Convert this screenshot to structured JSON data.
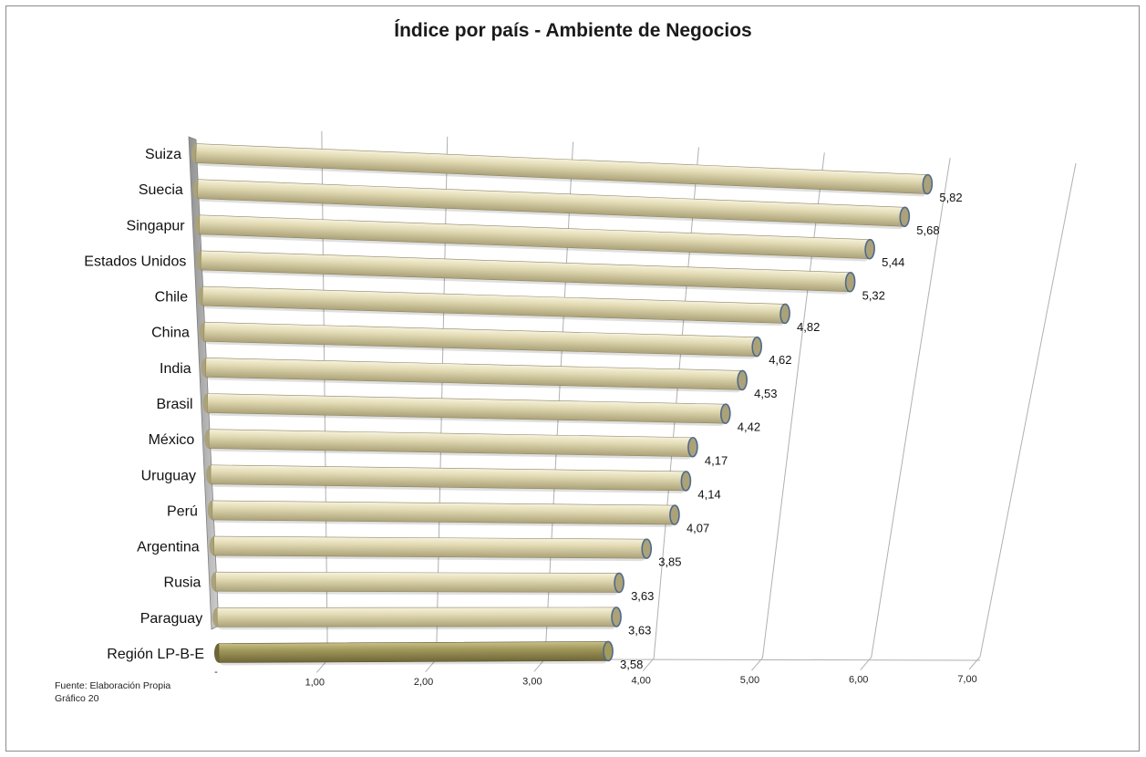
{
  "notes": {
    "source": "Fuente: Elaboración Propia",
    "figure": "Gráfico  20"
  },
  "chart_data": {
    "type": "bar",
    "orientation": "horizontal",
    "style": "3d-cylinder",
    "title": "Índice por país - Ambiente de Negocios",
    "xlabel": "",
    "ylabel": "",
    "xlim": [
      0,
      7
    ],
    "x_tick_labels": [
      "-",
      "1,00",
      "2,00",
      "3,00",
      "4,00",
      "5,00",
      "6,00",
      "7,00"
    ],
    "categories": [
      "Suiza",
      "Suecia",
      "Singapur",
      "Estados Unidos",
      "Chile",
      "China",
      "India",
      "Brasil",
      "México",
      "Uruguay",
      "Perú",
      "Argentina",
      "Rusia",
      "Paraguay",
      "Región LP-B-E"
    ],
    "bar_labels": [
      "5,82",
      "5,68",
      "5,44",
      "5,32",
      "4,82",
      "4,62",
      "4,53",
      "4,42",
      "4,17",
      "4,14",
      "4,07",
      "3,85",
      "3,63",
      "3,63",
      "3,58"
    ],
    "values": [
      5.82,
      5.68,
      5.44,
      5.32,
      4.82,
      4.62,
      4.53,
      4.42,
      4.17,
      4.14,
      4.07,
      3.85,
      3.63,
      3.63,
      3.58
    ],
    "highlight_index": 14,
    "colors": {
      "bar": "#e3dbb4",
      "bar_light": "#f6f2de",
      "bar_dark": "#aba279",
      "highlight": "#a39a5c",
      "highlight_light": "#c9c08a",
      "highlight_dark": "#6e6638",
      "cap_outline": "#4f6a8a",
      "grid": "#b0b0b0",
      "wall": "#9e9e9e"
    }
  }
}
